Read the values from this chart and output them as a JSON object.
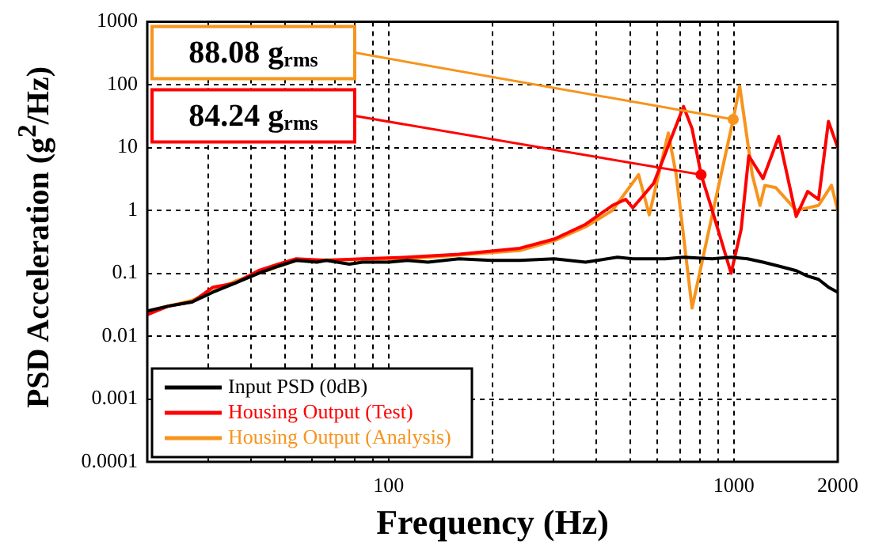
{
  "chart_data": {
    "type": "line",
    "xlabel": "Frequency (Hz)",
    "ylabel": "PSD Acceleration (g$^{2}$/Hz)",
    "log": "xy",
    "grid": true,
    "legend": "bottom left",
    "marker": "none",
    "line_style": "solid",
    "xlim": [
      20,
      2000
    ],
    "ylim": [
      0.0001,
      1000
    ],
    "xticks": [
      {
        "value": 30,
        "label": null
      },
      {
        "value": 40,
        "label": null
      },
      {
        "value": 50,
        "label": null
      },
      {
        "value": 60,
        "label": null
      },
      {
        "value": 70,
        "label": null
      },
      {
        "value": 80,
        "label": null
      },
      {
        "value": 90,
        "label": null
      },
      100,
      {
        "value": 200,
        "label": null
      },
      {
        "value": 300,
        "label": null
      },
      {
        "value": 400,
        "label": null
      },
      {
        "value": 500,
        "label": null
      },
      {
        "value": 600,
        "label": null
      },
      {
        "value": 700,
        "label": null
      },
      {
        "value": 800,
        "label": null
      },
      {
        "value": 900,
        "label": null
      },
      1000,
      2000
    ],
    "yticks": [
      0.0001,
      0.001,
      0.01,
      0.1,
      1,
      10,
      100,
      1000
    ],
    "series": [
      {
        "name": "Input PSD (0dB)",
        "color": "#000000",
        "x": [
          20,
          23,
          27,
          31,
          36,
          42,
          48,
          54,
          62,
          66,
          77,
          84,
          100,
          113,
          130,
          160,
          198,
          240,
          302,
          372,
          460,
          510,
          633,
          715,
          866,
          982,
          1096,
          1215,
          1350,
          1516,
          1637,
          1760,
          1880,
          2000
        ],
        "values": [
          0.025,
          0.03,
          0.035,
          0.05,
          0.07,
          0.1,
          0.13,
          0.16,
          0.15,
          0.16,
          0.14,
          0.15,
          0.15,
          0.16,
          0.15,
          0.17,
          0.16,
          0.16,
          0.17,
          0.15,
          0.18,
          0.17,
          0.17,
          0.18,
          0.17,
          0.18,
          0.17,
          0.15,
          0.13,
          0.11,
          0.09,
          0.08,
          0.06,
          0.05
        ]
      },
      {
        "name": "Housing Output (Test)",
        "color": "#ff0000",
        "x": [
          20,
          23,
          27,
          31,
          36,
          42,
          48,
          54,
          66,
          84,
          113,
          160,
          240,
          302,
          372,
          445,
          486,
          510,
          586,
          633,
          715,
          757,
          804,
          866,
          982,
          1050,
          1105,
          1215,
          1350,
          1516,
          1637,
          1760,
          1880,
          2000
        ],
        "values": [
          0.022,
          0.03,
          0.035,
          0.06,
          0.07,
          0.11,
          0.14,
          0.17,
          0.16,
          0.17,
          0.18,
          0.2,
          0.25,
          0.35,
          0.6,
          1.2,
          1.5,
          1.1,
          2.7,
          8,
          45,
          20,
          3.7,
          1,
          0.1,
          0.5,
          7.4,
          3.2,
          15,
          0.8,
          2,
          1.5,
          26,
          10
        ]
      },
      {
        "name": "Housing Output (Analysis)",
        "color": "#f7941d",
        "x": [
          20,
          27,
          36,
          54,
          113,
          240,
          302,
          372,
          445,
          530,
          569,
          646,
          681,
          757,
          866,
          996,
          1040,
          1131,
          1191,
          1230,
          1324,
          1516,
          1760,
          1918,
          2000
        ],
        "values": [
          0.025,
          0.037,
          0.075,
          0.16,
          0.17,
          0.23,
          0.33,
          0.55,
          1.0,
          3.7,
          0.85,
          17,
          3.7,
          0.028,
          0.85,
          28,
          95,
          3.7,
          1.2,
          2.5,
          2.3,
          1.0,
          1.2,
          2.5,
          1.0
        ]
      }
    ],
    "annotations": [
      {
        "text": "88.08 g$_{rms}$",
        "x": 996,
        "y": 28
      },
      {
        "text": "84.24 g$_{rms}$",
        "x": 804,
        "y": 3.7
      }
    ]
  }
}
